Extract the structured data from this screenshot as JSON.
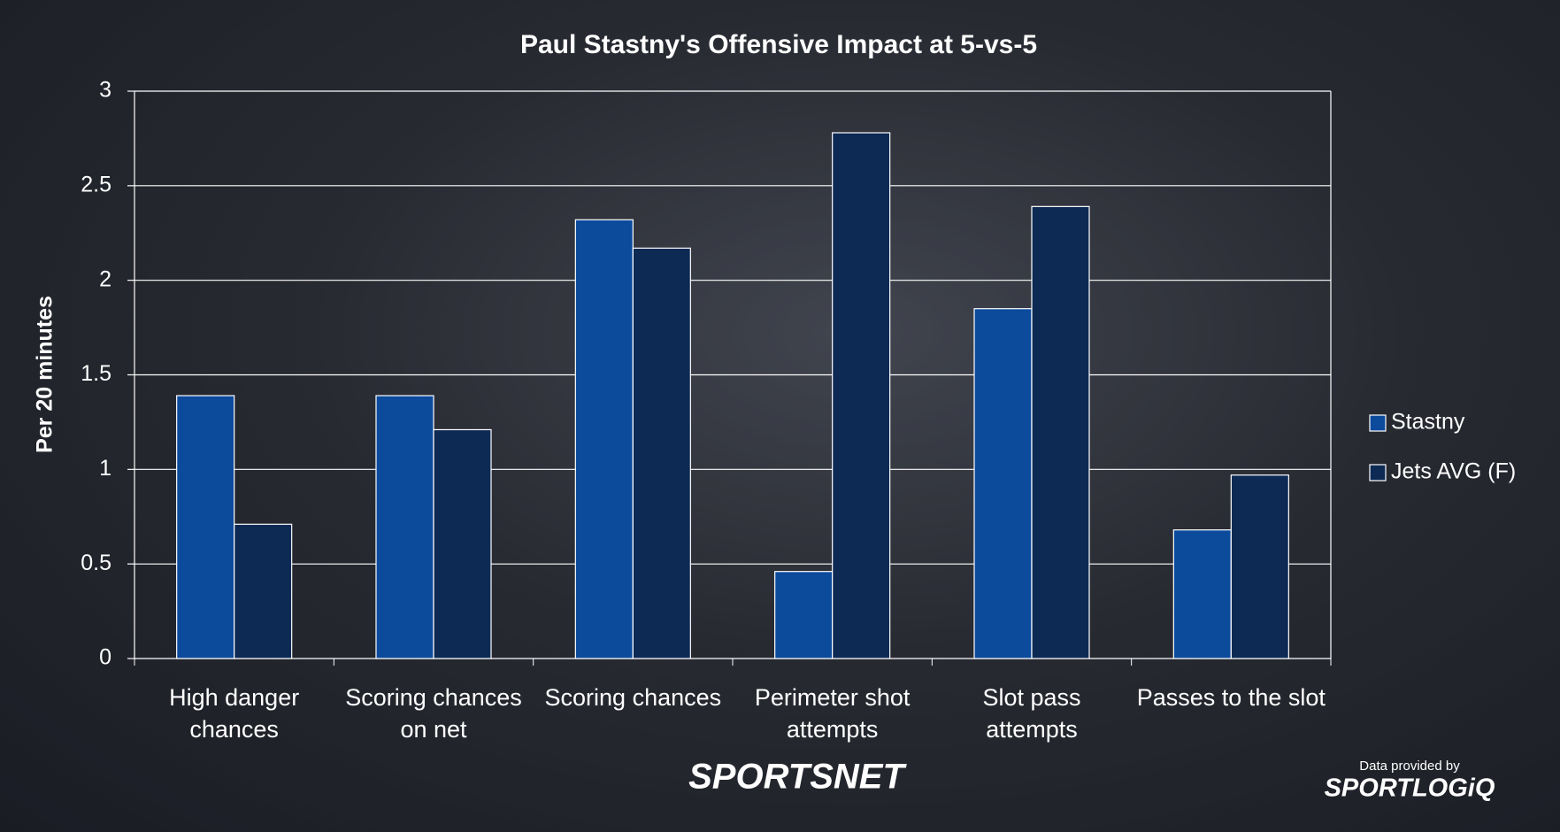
{
  "chart_data": {
    "type": "bar",
    "title": "Paul Stastny's Offensive Impact at 5-vs-5",
    "y_label": "Per 20 minutes",
    "categories": [
      "High danger chances",
      "Scoring chances on net",
      "Scoring chances",
      "Perimeter shot attempts",
      "Slot pass attempts",
      "Passes to the slot"
    ],
    "series": [
      {
        "name": "Stastny",
        "color": "#0c4a9c",
        "values": [
          1.39,
          1.39,
          2.32,
          0.46,
          1.85,
          0.68
        ]
      },
      {
        "name": "Jets AVG (F)",
        "color": "#0d2a55",
        "values": [
          0.71,
          1.21,
          2.17,
          2.78,
          2.39,
          0.97
        ]
      }
    ],
    "ylim": [
      0,
      3
    ],
    "yticks": [
      0,
      0.5,
      1,
      1.5,
      2,
      2.5,
      3
    ],
    "grid": true,
    "legend": "right"
  },
  "branding": {
    "logo": "SPORTSNET",
    "credit": "Data provided by",
    "provider": "SPORTLOGiQ"
  }
}
